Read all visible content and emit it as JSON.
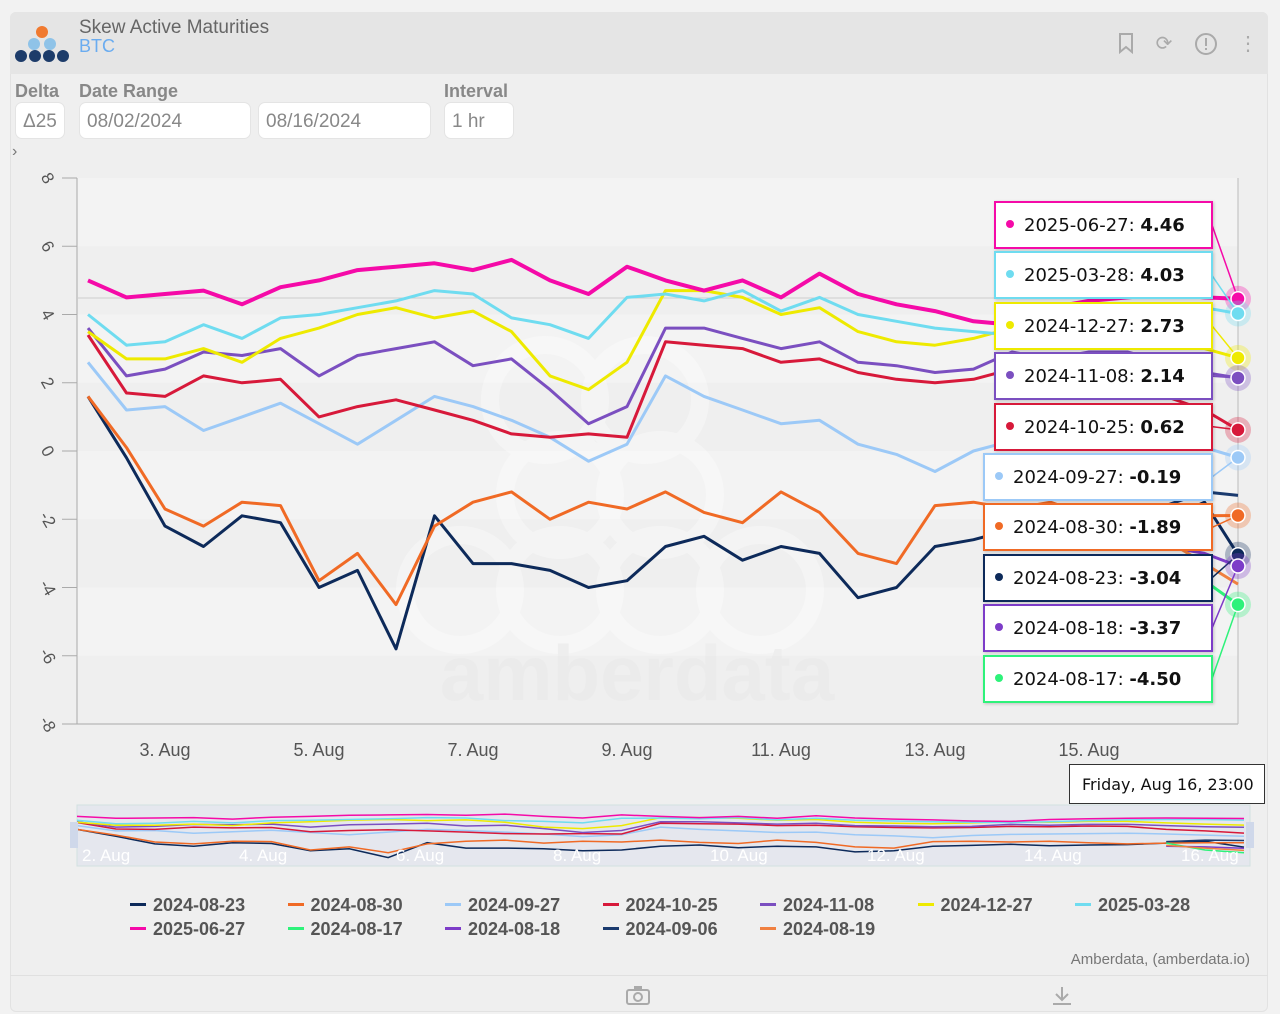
{
  "header": {
    "title": "Skew Active Maturities",
    "subtitle": "BTC",
    "icons": [
      "bookmark-icon",
      "refresh-icon",
      "info-icon",
      "more-vertical-icon"
    ]
  },
  "controls": {
    "delta_label": "Delta",
    "delta_value": "Δ25",
    "date_range_label": "Date Range",
    "start_date": "08/02/2024",
    "end_date": "08/16/2024",
    "interval_label": "Interval",
    "interval_value": "1 hr",
    "expand_glyph": "›"
  },
  "watermark": "amberdata",
  "credit": "Amberdata, (amberdata.io)",
  "footer": {
    "icons": [
      "camera-icon",
      "download-icon"
    ]
  },
  "chart_data": {
    "type": "line",
    "ylim": [
      -8,
      8
    ],
    "yticks": [
      "8",
      "6",
      "4",
      "2",
      "0",
      "-2",
      "-4",
      "-6",
      "-8"
    ],
    "xticks": [
      "3. Aug",
      "5. Aug",
      "7. Aug",
      "9. Aug",
      "11. Aug",
      "13. Aug",
      "15. Aug"
    ],
    "navigator_ticks": [
      "2. Aug",
      "4. Aug",
      "6. Aug",
      "8. Aug",
      "10. Aug",
      "12. Aug",
      "14. Aug",
      "16. Aug"
    ],
    "grid": "horizontal bands",
    "legend_placement": "bottom",
    "x": [
      "2024-08-02 00:00",
      "2024-08-02 12:00",
      "2024-08-03 00:00",
      "2024-08-03 12:00",
      "2024-08-04 00:00",
      "2024-08-04 12:00",
      "2024-08-05 00:00",
      "2024-08-05 12:00",
      "2024-08-06 00:00",
      "2024-08-06 12:00",
      "2024-08-07 00:00",
      "2024-08-07 12:00",
      "2024-08-08 00:00",
      "2024-08-08 12:00",
      "2024-08-09 00:00",
      "2024-08-09 12:00",
      "2024-08-10 00:00",
      "2024-08-10 12:00",
      "2024-08-11 00:00",
      "2024-08-11 12:00",
      "2024-08-12 00:00",
      "2024-08-12 12:00",
      "2024-08-13 00:00",
      "2024-08-13 12:00",
      "2024-08-14 00:00",
      "2024-08-14 12:00",
      "2024-08-15 00:00",
      "2024-08-15 12:00",
      "2024-08-16 00:00",
      "2024-08-16 12:00",
      "2024-08-16 23:00"
    ],
    "series": [
      {
        "name": "2024-08-23",
        "color": "#0d2a5a",
        "values": [
          1.6,
          -0.2,
          -2.2,
          -2.8,
          -1.9,
          -2.1,
          -4.0,
          -3.5,
          -5.8,
          -1.9,
          -3.3,
          -3.3,
          -3.5,
          -4.0,
          -3.8,
          -2.8,
          -2.5,
          -3.2,
          -2.8,
          -3.0,
          -4.3,
          -4.0,
          -2.8,
          -2.6,
          -2.3,
          -2.7,
          -2.5,
          -2.4,
          -2.0,
          -1.5,
          -3.04
        ]
      },
      {
        "name": "2024-08-30",
        "color": "#f06a25",
        "values": [
          1.6,
          0.1,
          -1.7,
          -2.2,
          -1.5,
          -1.6,
          -3.8,
          -3.0,
          -4.5,
          -2.2,
          -1.5,
          -1.2,
          -2.0,
          -1.5,
          -1.7,
          -1.2,
          -1.8,
          -2.1,
          -1.2,
          -1.8,
          -3.0,
          -3.3,
          -1.6,
          -1.5,
          -1.7,
          -1.5,
          -1.9,
          -2.2,
          -2.0,
          -1.9,
          -1.89
        ]
      },
      {
        "name": "2024-09-27",
        "color": "#9cc9f7",
        "values": [
          2.6,
          1.2,
          1.3,
          0.6,
          1.0,
          1.4,
          0.8,
          0.2,
          0.9,
          1.6,
          1.3,
          0.9,
          0.4,
          -0.3,
          0.2,
          2.2,
          1.6,
          1.2,
          0.8,
          0.9,
          0.2,
          -0.1,
          -0.6,
          0.0,
          0.3,
          0.4,
          0.5,
          0.6,
          0.4,
          0.1,
          -0.19
        ]
      },
      {
        "name": "2024-10-25",
        "color": "#d7193a",
        "values": [
          3.4,
          1.7,
          1.6,
          2.2,
          2.0,
          2.1,
          1.0,
          1.3,
          1.5,
          1.2,
          0.9,
          0.5,
          0.4,
          0.5,
          0.4,
          3.2,
          3.1,
          3.0,
          2.6,
          2.7,
          2.3,
          2.1,
          2.0,
          2.1,
          2.4,
          2.3,
          2.5,
          2.4,
          1.6,
          1.2,
          0.62
        ]
      },
      {
        "name": "2024-11-08",
        "color": "#7b4fc0",
        "values": [
          3.6,
          2.2,
          2.4,
          2.9,
          2.8,
          3.0,
          2.2,
          2.8,
          3.0,
          3.2,
          2.5,
          2.7,
          1.8,
          0.8,
          1.3,
          3.6,
          3.6,
          3.3,
          3.0,
          3.2,
          2.6,
          2.5,
          2.3,
          2.4,
          2.9,
          2.7,
          2.9,
          2.9,
          2.6,
          2.3,
          2.14
        ]
      },
      {
        "name": "2024-12-27",
        "color": "#eeea00",
        "values": [
          3.5,
          2.7,
          2.7,
          3.0,
          2.6,
          3.3,
          3.6,
          4.0,
          4.2,
          3.9,
          4.1,
          3.5,
          2.2,
          1.8,
          2.6,
          4.7,
          4.7,
          4.5,
          4.0,
          4.2,
          3.5,
          3.2,
          3.1,
          3.3,
          3.6,
          3.5,
          3.7,
          3.7,
          3.3,
          3.0,
          2.73
        ]
      },
      {
        "name": "2025-03-28",
        "color": "#6fdcf0",
        "values": [
          4.0,
          3.1,
          3.2,
          3.7,
          3.3,
          3.9,
          4.0,
          4.2,
          4.4,
          4.7,
          4.6,
          3.9,
          3.7,
          3.3,
          4.5,
          4.6,
          4.4,
          4.7,
          4.1,
          4.5,
          4.0,
          3.8,
          3.6,
          3.5,
          3.4,
          3.6,
          3.9,
          4.1,
          4.2,
          4.2,
          4.03
        ]
      },
      {
        "name": "2025-06-27",
        "color": "#f50aa8",
        "values": [
          5.0,
          4.5,
          4.6,
          4.7,
          4.3,
          4.8,
          5.0,
          5.3,
          5.4,
          5.5,
          5.3,
          5.6,
          5.0,
          4.6,
          5.4,
          5.0,
          4.7,
          5.0,
          4.5,
          5.2,
          4.6,
          4.3,
          4.1,
          3.8,
          3.7,
          4.2,
          4.4,
          4.5,
          4.6,
          4.5,
          4.46
        ]
      },
      {
        "name": "2024-08-17",
        "color": "#2ef27a",
        "values": [
          null,
          null,
          null,
          null,
          null,
          null,
          null,
          null,
          null,
          null,
          null,
          null,
          null,
          null,
          null,
          null,
          null,
          null,
          null,
          null,
          null,
          null,
          null,
          null,
          null,
          null,
          null,
          null,
          -2.0,
          -3.8,
          -4.5
        ]
      },
      {
        "name": "2024-08-18",
        "color": "#7d3cc8",
        "values": [
          null,
          null,
          null,
          null,
          null,
          null,
          null,
          null,
          null,
          null,
          null,
          null,
          null,
          null,
          null,
          null,
          null,
          null,
          null,
          null,
          null,
          null,
          null,
          null,
          null,
          null,
          null,
          null,
          -2.8,
          -3.0,
          -3.37
        ]
      },
      {
        "name": "2024-09-06",
        "color": "#1a3a6e",
        "values": [
          null,
          null,
          null,
          null,
          null,
          null,
          null,
          null,
          null,
          null,
          null,
          null,
          null,
          null,
          null,
          null,
          null,
          null,
          null,
          null,
          null,
          null,
          null,
          null,
          null,
          null,
          null,
          null,
          -1.6,
          -1.2,
          -1.3
        ]
      },
      {
        "name": "2024-08-19",
        "color": "#f08040",
        "values": [
          null,
          null,
          null,
          null,
          null,
          null,
          null,
          null,
          null,
          null,
          null,
          null,
          null,
          null,
          null,
          null,
          null,
          null,
          null,
          null,
          null,
          null,
          null,
          null,
          null,
          null,
          null,
          null,
          -2.6,
          -3.3,
          -3.9
        ]
      }
    ],
    "tooltip": {
      "time": "Friday, Aug 16, 23:00",
      "entries": [
        {
          "name": "2025-06-27",
          "value": "4.46",
          "color": "#f50aa8"
        },
        {
          "name": "2025-03-28",
          "value": "4.03",
          "color": "#6fdcf0"
        },
        {
          "name": "2024-12-27",
          "value": "2.73",
          "color": "#eeea00"
        },
        {
          "name": "2024-11-08",
          "value": "2.14",
          "color": "#7b4fc0"
        },
        {
          "name": "2024-10-25",
          "value": "0.62",
          "color": "#d7193a"
        },
        {
          "name": "2024-09-27",
          "value": "-0.19",
          "color": "#9cc9f7"
        },
        {
          "name": "2024-08-30",
          "value": "-1.89",
          "color": "#f06a25"
        },
        {
          "name": "2024-08-23",
          "value": "-3.04",
          "color": "#0d2a5a"
        },
        {
          "name": "2024-08-18",
          "value": "-3.37",
          "color": "#7d3cc8"
        },
        {
          "name": "2024-08-17",
          "value": "-4.50",
          "color": "#2ef27a"
        }
      ]
    }
  }
}
